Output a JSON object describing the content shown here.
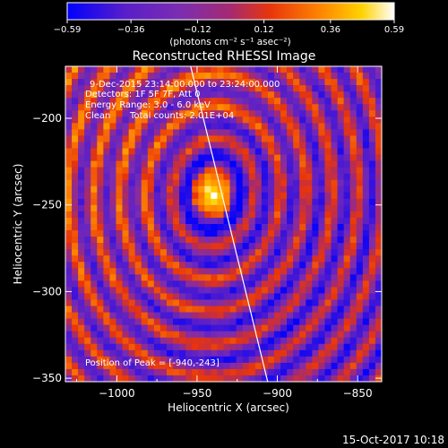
{
  "chart_data": {
    "type": "heatmap",
    "title": "Reconstructed RHESSI Image",
    "xlabel": "Heliocentric X (arcsec)",
    "ylabel": "Heliocentric Y (arcsec)",
    "xlim": [
      -1032,
      -835
    ],
    "ylim": [
      -352,
      -170
    ],
    "x_ticks": [
      -1000,
      -950,
      -900,
      -850
    ],
    "y_ticks": [
      -200,
      -250,
      -300,
      -350
    ],
    "x_tick_labels": [
      "−1000",
      "−950",
      "−900",
      "−850"
    ],
    "y_tick_labels": [
      "−200",
      "−250",
      "−300",
      "−350"
    ],
    "grid": false,
    "peak": [
      -940,
      -243
    ],
    "colorbar": {
      "min": -0.59,
      "max": 0.59,
      "ticks": [
        -0.59,
        -0.36,
        -0.12,
        0.12,
        0.36,
        0.59
      ],
      "tick_labels": [
        "−0.59",
        "−0.36",
        "−0.12",
        "0.12",
        "0.36",
        "0.59"
      ],
      "unit_label": "(photons cm⁻² s⁻¹ asec⁻²)",
      "colors": [
        "#0000ff",
        "#5a1fc8",
        "#7d2db0",
        "#b02a60",
        "#e8350c",
        "#ff8800",
        "#ffd200",
        "#ffffff"
      ]
    },
    "annotations": {
      "time_range": "9-Dec-2015 23:14:00.000 to 23:24:00.000",
      "detectors": "Detectors: 1F 5F 7F, Att 0",
      "energy": "Energy Range: 3.0 - 6.0 keV",
      "clean": "Clean",
      "counts": "Total counts: 2.01E+04",
      "peak_text": "Position of Peak = [-940,-243]"
    },
    "limb_line": {
      "x": [
        -954,
        -906
      ],
      "y": [
        -170,
        -352
      ]
    }
  },
  "footer": {
    "date": "15-Oct-2017 10:18"
  }
}
